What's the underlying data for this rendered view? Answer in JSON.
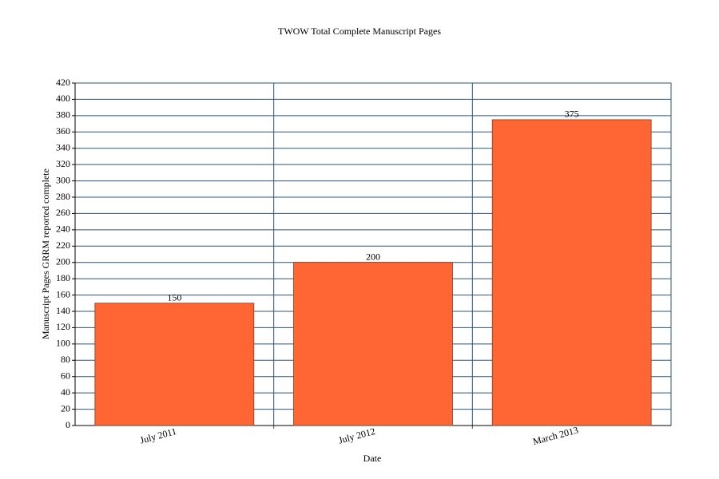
{
  "chart_data": {
    "type": "bar",
    "title": "TWOW Total Complete Manuscript Pages",
    "x_label": "Date",
    "y_label": "Manuscript Pages GRRM reported complete",
    "categories": [
      "July 2011",
      "July 2012",
      "March 2013"
    ],
    "values": [
      150,
      200,
      375
    ],
    "color": "#ff6633",
    "ylim": [
      0,
      420
    ],
    "yticks": [
      0,
      20,
      40,
      60,
      80,
      100,
      120,
      140,
      160,
      180,
      200,
      220,
      240,
      260,
      280,
      300,
      320,
      340,
      360,
      380,
      400,
      420
    ],
    "grid": true
  }
}
